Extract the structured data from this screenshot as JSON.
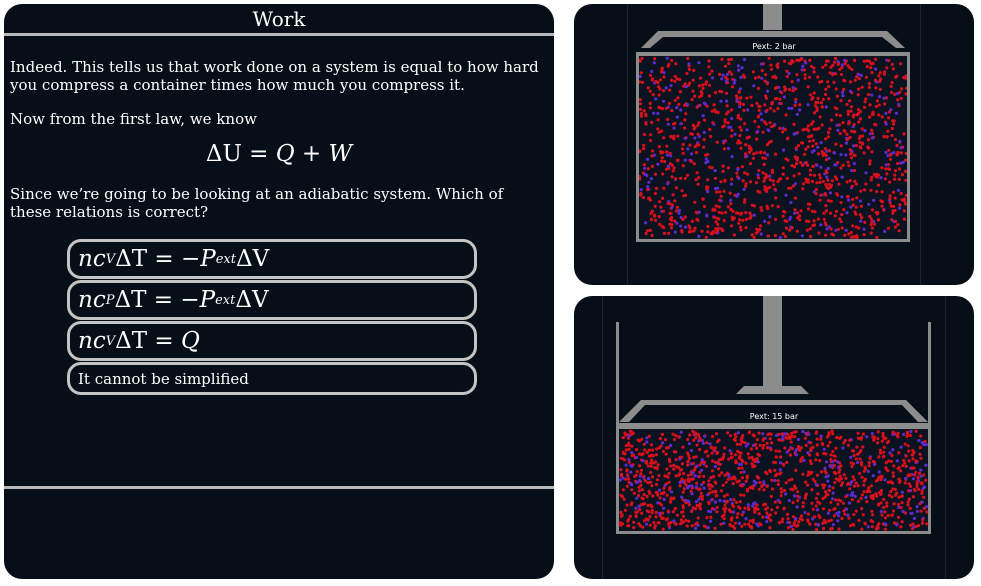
{
  "lesson": {
    "title": "Work",
    "paragraph1": "Indeed. This tells us that work done on a system is equal to how hard you compress a container times how much you compress it.",
    "paragraph2": "Now from the first law, we know",
    "first_law": {
      "lhs": "ΔU",
      "eq": "=",
      "rhs": "Q + W"
    },
    "paragraph3": "Since we’re going to be looking at an adiabatic system. Which of these relations is correct?",
    "options": [
      {
        "n": "n",
        "c": "c",
        "sub": "V",
        "dT": "ΔT",
        "rhs": "= −P",
        "rhs_sub": "ext",
        "tail": "ΔV"
      },
      {
        "n": "n",
        "c": "c",
        "sub": "P",
        "dT": "ΔT",
        "rhs": "= −P",
        "rhs_sub": "ext",
        "tail": "ΔV"
      },
      {
        "n": "n",
        "c": "c",
        "sub": "V",
        "dT": "ΔT",
        "rhs": "= Q",
        "rhs_sub": "",
        "tail": ""
      },
      {
        "label": "It cannot be simplified"
      }
    ]
  },
  "simulations": {
    "top": {
      "pext_label": "Pext: 2 bar"
    },
    "bottom": {
      "pext_label": "Pext: 15 bar"
    }
  },
  "colors": {
    "panel_bg": "#060f18",
    "divider": "#b9b9b9",
    "piston": "#8c8c8c",
    "particle_red": "#d8101c",
    "particle_blue": "#5b2ad0"
  }
}
